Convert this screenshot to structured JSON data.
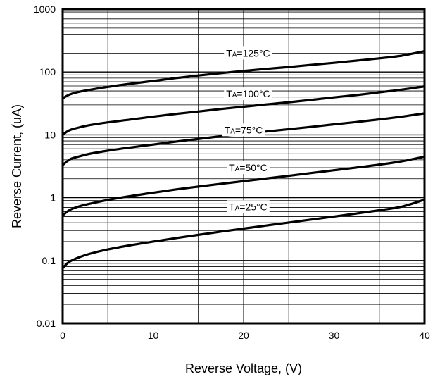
{
  "chart_data": {
    "type": "line",
    "title": "",
    "xlabel": "Reverse Voltage, (V)",
    "ylabel": "Reverse Current, (uA)",
    "x_scale": "linear",
    "y_scale": "log",
    "xlim": [
      0,
      40
    ],
    "ylim": [
      0.01,
      1000
    ],
    "grid": true,
    "legend": "none",
    "xticks": [
      "0",
      "10",
      "20",
      "30",
      "40"
    ],
    "yticks": [
      "0.01",
      "0.1",
      "1",
      "10",
      "100",
      "1000"
    ],
    "x": [
      0,
      0.5,
      1,
      2,
      3,
      5,
      7.5,
      10,
      12.5,
      15,
      17.5,
      20,
      22.5,
      25,
      27.5,
      30,
      32.5,
      35,
      37.5,
      40
    ],
    "series": [
      {
        "label_main": "T",
        "label_sub": "A",
        "label_rest": "=125°C",
        "label_x": 20.5,
        "label_y": 200,
        "values": [
          38,
          42,
          45,
          49,
          52,
          58,
          65,
          72,
          80,
          88,
          96,
          104,
          112,
          120,
          130,
          140,
          152,
          165,
          182,
          215
        ]
      },
      {
        "label_main": "T",
        "label_sub": "A",
        "label_rest": "=100°C",
        "label_x": 20.5,
        "label_y": 45,
        "values": [
          10,
          11.3,
          12.2,
          13.3,
          14.3,
          15.8,
          17.5,
          19.5,
          21.5,
          23.5,
          25.8,
          28,
          30.5,
          33,
          36,
          39.5,
          43,
          47.5,
          52.5,
          59
        ]
      },
      {
        "label_main": "T",
        "label_sub": "A",
        "label_rest": "=75°C",
        "label_x": 20,
        "label_y": 12,
        "values": [
          3.3,
          3.8,
          4.2,
          4.6,
          5.0,
          5.6,
          6.3,
          7.0,
          7.8,
          8.6,
          9.5,
          10.4,
          11.3,
          12.3,
          13.4,
          14.7,
          16.0,
          17.6,
          19.5,
          22
        ]
      },
      {
        "label_main": "T",
        "label_sub": "A",
        "label_rest": "=50°C",
        "label_x": 20.5,
        "label_y": 3,
        "values": [
          0.52,
          0.6,
          0.66,
          0.74,
          0.8,
          0.92,
          1.06,
          1.2,
          1.35,
          1.5,
          1.66,
          1.83,
          2.02,
          2.23,
          2.47,
          2.73,
          3.02,
          3.35,
          3.8,
          4.5
        ]
      },
      {
        "label_main": "T",
        "label_sub": "A",
        "label_rest": "=25°C",
        "label_x": 20.5,
        "label_y": 0.72,
        "values": [
          0.075,
          0.09,
          0.1,
          0.115,
          0.128,
          0.15,
          0.175,
          0.2,
          0.227,
          0.256,
          0.288,
          0.322,
          0.36,
          0.402,
          0.448,
          0.5,
          0.56,
          0.63,
          0.72,
          0.93
        ]
      }
    ]
  }
}
